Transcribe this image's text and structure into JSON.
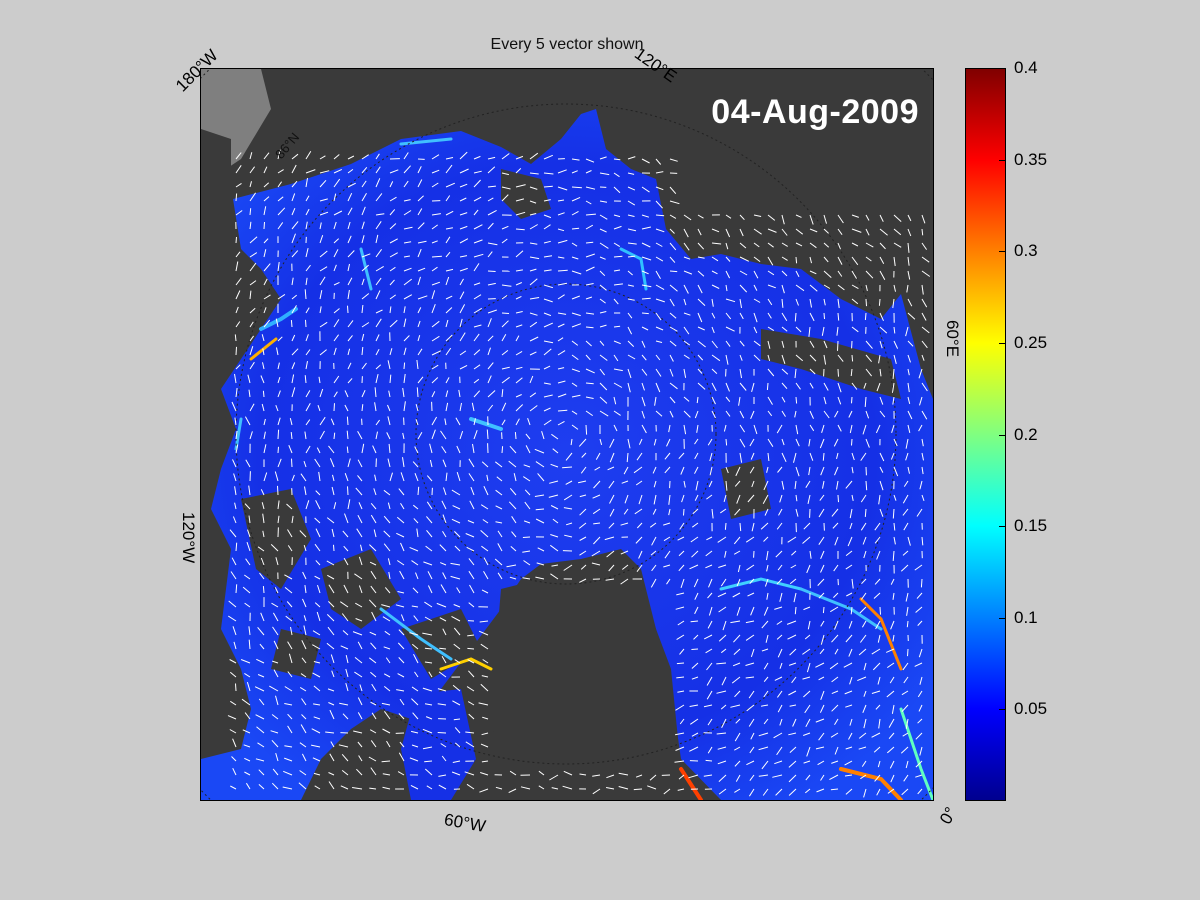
{
  "figure": {
    "title": "Every 5 vector shown",
    "date_label": "04-Aug-2009"
  },
  "map_labels": {
    "lon_180w": "180°W",
    "lon_120e": "120°E",
    "lon_60e": "60°E",
    "lon_120w": "120°W",
    "lon_60w": "60°W",
    "lon_0": "0°",
    "lat_86n": "86°N"
  },
  "colorbar": {
    "ticks": [
      "0.4",
      "0.35",
      "0.3",
      "0.25",
      "0.2",
      "0.15",
      "0.1",
      "0.05"
    ],
    "colormap": "jet",
    "min": 0,
    "max": 0.4
  },
  "colors": {
    "land": "#3a3a3a",
    "shelf": "#808080",
    "ice_drift_field": "#1f2fe8",
    "vectors": "#ffffff",
    "background": "#cccccc"
  }
}
